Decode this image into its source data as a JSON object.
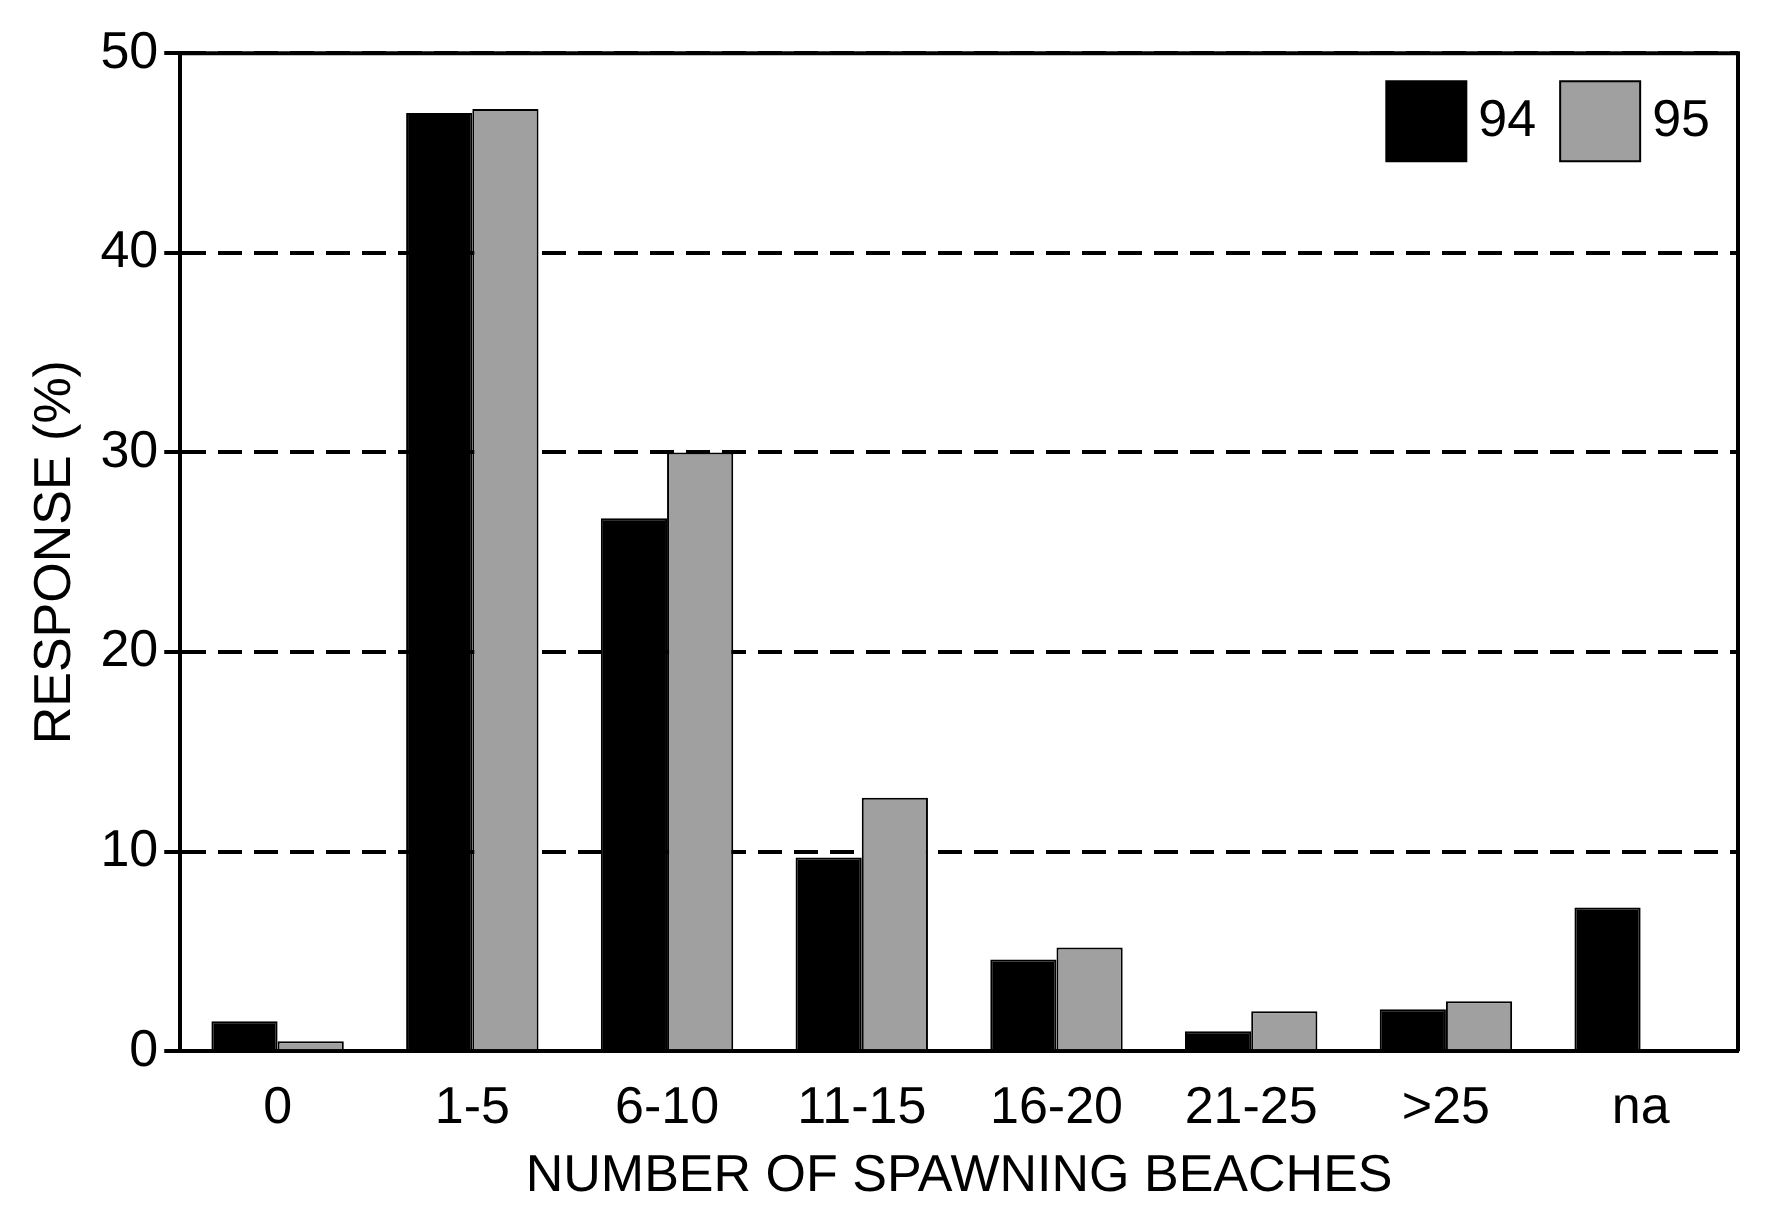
{
  "chart_data": {
    "type": "bar",
    "xlabel": "NUMBER OF SPAWNING BEACHES",
    "ylabel": "RESPONSE (%)",
    "categories": [
      "0",
      "1-5",
      "6-10",
      "11-15",
      "16-20",
      "21-25",
      ">25",
      "na"
    ],
    "series": [
      {
        "name": "94",
        "color": "#000000",
        "values": [
          1.5,
          47,
          26.7,
          9.7,
          4.6,
          1,
          2.1,
          7.2
        ]
      },
      {
        "name": "95",
        "color": "#a0a0a0",
        "values": [
          0.5,
          47.2,
          30,
          12.7,
          5.2,
          2,
          2.5,
          null
        ]
      }
    ],
    "ylim": [
      0,
      50
    ],
    "yticks": [
      0,
      10,
      20,
      30,
      40,
      50
    ],
    "grid": "y",
    "legend": "top right"
  }
}
